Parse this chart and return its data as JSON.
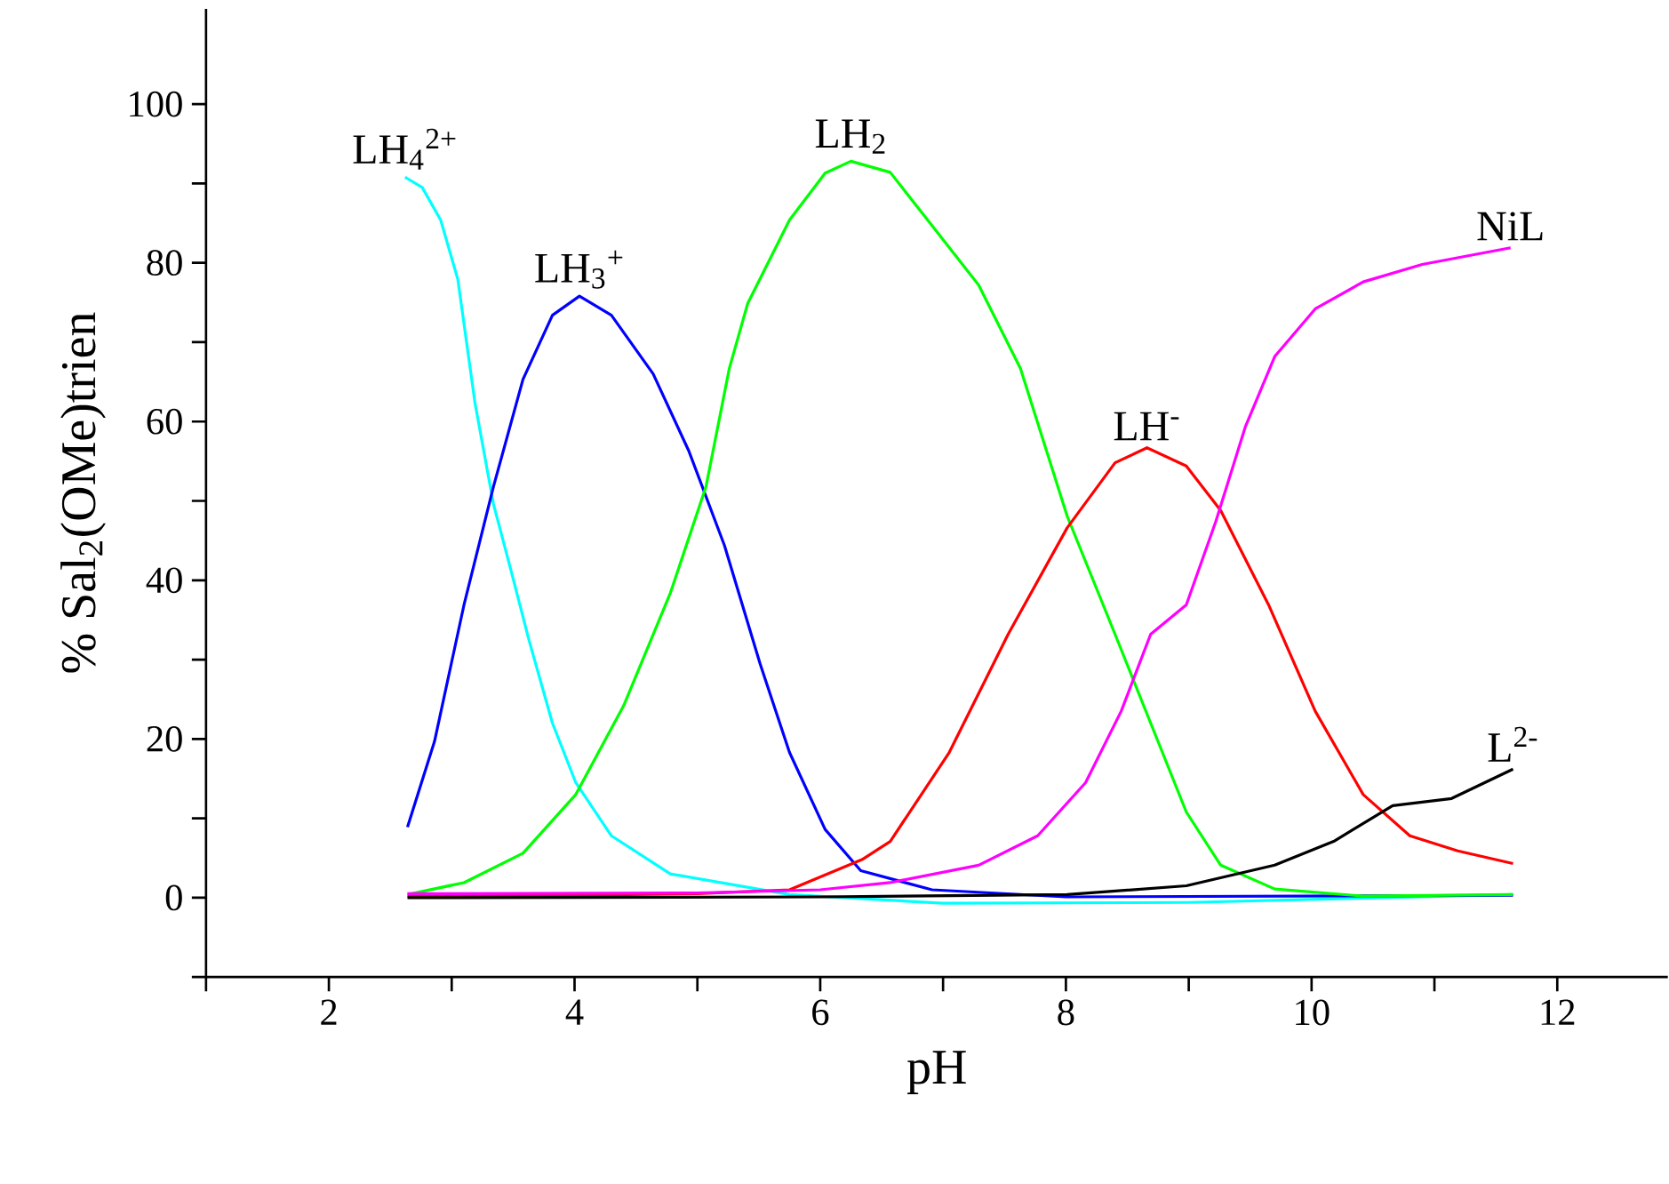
{
  "chart_data": {
    "type": "line",
    "xlabel": "pH",
    "ylabel": "% Sal$_{2}$(OMe)trien",
    "xlim": [
      1,
      12.9
    ],
    "ylim": [
      -10,
      112
    ],
    "xticks": [
      {
        "value": 1,
        "label": null
      },
      2,
      {
        "value": 3,
        "label": null
      },
      4,
      {
        "value": 5,
        "label": null
      },
      6,
      {
        "value": 7,
        "label": null
      },
      8,
      {
        "value": 9,
        "label": null
      },
      10,
      {
        "value": 11,
        "label": null
      },
      12
    ],
    "yticks": [
      {
        "value": -10,
        "label": null
      },
      0,
      {
        "value": 10,
        "label": null
      },
      20,
      {
        "value": 30,
        "label": null
      },
      40,
      {
        "value": 50,
        "label": null
      },
      60,
      {
        "value": 70,
        "label": null
      },
      80,
      {
        "value": 90,
        "label": null
      },
      100
    ],
    "grid": false,
    "legend": false,
    "marker": "none",
    "line_style": "solid",
    "series": [
      {
        "name": "LH$_{4}$$^{2+}$",
        "color": "#00ffff",
        "x": [
          2.62,
          2.76,
          2.91,
          3.05,
          3.19,
          3.34,
          3.48,
          3.63,
          3.82,
          4.01,
          4.3,
          4.78,
          5.75,
          7.0,
          9.0,
          11.64
        ],
        "values": [
          90.8,
          89.5,
          85.4,
          77.9,
          62.3,
          49.6,
          41.4,
          32.4,
          22,
          14.5,
          7.8,
          3.0,
          0.4,
          -0.7,
          -0.6,
          0.4
        ]
      },
      {
        "name": "LH$_{3}$$^{+}$",
        "color": "#0000ff",
        "x": [
          2.64,
          2.86,
          3.1,
          3.34,
          3.58,
          3.82,
          4.04,
          4.3,
          4.64,
          4.93,
          5.22,
          5.51,
          5.75,
          6.04,
          6.33,
          6.91,
          8.0,
          11.64
        ],
        "values": [
          8.9,
          19.7,
          36.9,
          51.8,
          65.3,
          73.4,
          75.8,
          73.4,
          66.0,
          56.3,
          44.4,
          29.5,
          18.3,
          8.6,
          3.4,
          1.0,
          0.1,
          0.3
        ]
      },
      {
        "name": "LH$_{2}$",
        "color": "#00ff00",
        "x": [
          2.64,
          3.1,
          3.58,
          4.01,
          4.4,
          4.78,
          5.07,
          5.26,
          5.41,
          5.75,
          6.04,
          6.25,
          6.57,
          7.29,
          7.63,
          8.01,
          8.4,
          8.69,
          8.98,
          9.26,
          9.7,
          10.42,
          11.64
        ],
        "values": [
          0.4,
          1.9,
          5.6,
          13,
          24.2,
          38.4,
          51.8,
          66.7,
          74.9,
          85.4,
          91.3,
          92.8,
          91.4,
          77.2,
          66.7,
          48.1,
          33.2,
          22,
          10.8,
          4.1,
          1.1,
          0.2,
          0.4
        ]
      },
      {
        "name": "LH$^{-}$",
        "color": "#ff0000",
        "x": [
          2.64,
          4.0,
          5.0,
          5.75,
          6.34,
          6.57,
          7.05,
          7.53,
          8.01,
          8.4,
          8.66,
          8.98,
          9.26,
          9.65,
          10.03,
          10.42,
          10.8,
          11.19,
          11.64
        ],
        "values": [
          0.2,
          0.3,
          0.5,
          1.0,
          4.8,
          7.1,
          18.3,
          33.2,
          46.6,
          54.8,
          56.7,
          54.4,
          48.8,
          36.9,
          23.5,
          13.0,
          7.8,
          5.9,
          4.3
        ]
      },
      {
        "name": "NiL",
        "color": "#ff00ff",
        "x": [
          2.64,
          5.0,
          6.0,
          6.57,
          7.29,
          7.77,
          8.16,
          8.45,
          8.69,
          8.98,
          9.22,
          9.46,
          9.7,
          10.03,
          10.42,
          10.9,
          11.62
        ],
        "values": [
          0.5,
          0.6,
          1.0,
          1.9,
          4.1,
          7.8,
          14.5,
          23.5,
          33.2,
          36.9,
          47.4,
          59.3,
          68.2,
          74.2,
          77.6,
          79.8,
          81.9
        ]
      },
      {
        "name": "L$^{2-}$",
        "color": "#000000",
        "x": [
          2.64,
          6.0,
          8.01,
          8.98,
          9.7,
          10.18,
          10.66,
          11.14,
          11.64
        ],
        "values": [
          0,
          0.1,
          0.4,
          1.5,
          4.1,
          7.1,
          11.6,
          12.5,
          16.2
        ]
      }
    ]
  }
}
